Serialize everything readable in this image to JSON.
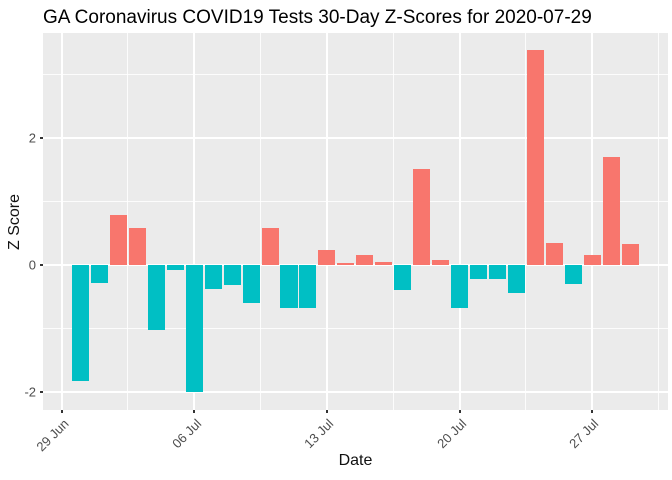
{
  "chart_data": {
    "type": "bar",
    "title": "GA Coronavirus COVID19 Tests 30-Day Z-Scores for 2020-07-29",
    "xlabel": "Date",
    "ylabel": "Z Score",
    "x_dates": [
      "2020-06-30",
      "2020-07-01",
      "2020-07-02",
      "2020-07-03",
      "2020-07-04",
      "2020-07-05",
      "2020-07-06",
      "2020-07-07",
      "2020-07-08",
      "2020-07-09",
      "2020-07-10",
      "2020-07-11",
      "2020-07-12",
      "2020-07-13",
      "2020-07-14",
      "2020-07-15",
      "2020-07-16",
      "2020-07-17",
      "2020-07-18",
      "2020-07-19",
      "2020-07-20",
      "2020-07-21",
      "2020-07-22",
      "2020-07-23",
      "2020-07-24",
      "2020-07-25",
      "2020-07-26",
      "2020-07-27",
      "2020-07-28",
      "2020-07-29"
    ],
    "values": [
      -1.84,
      -0.29,
      0.79,
      0.58,
      -1.03,
      -0.08,
      -2.0,
      -0.38,
      -0.31,
      -0.6,
      0.59,
      -0.68,
      -0.68,
      0.23,
      0.03,
      0.15,
      0.04,
      -0.39,
      1.51,
      0.08,
      -0.68,
      -0.23,
      -0.23,
      -0.45,
      3.39,
      0.35,
      -0.3,
      0.15,
      1.7,
      0.33
    ],
    "positive_color": "#F8766D",
    "negative_color": "#00BFC4",
    "panel_bg": "#EBEBEB",
    "grid_color": "#FFFFFF",
    "axis_text_color": "#4D4D4D",
    "ylim": [
      -2.29,
      3.66
    ],
    "y_major_ticks": [
      -2,
      0,
      2
    ],
    "y_minor_ticks": [
      -1,
      1,
      3
    ],
    "y_tick_labels": [
      "-2",
      "0",
      "2"
    ],
    "xlim_days": [
      -1.98,
      31.0
    ],
    "x_ticks": [
      {
        "label": "29 Jun",
        "day": -1
      },
      {
        "label": "06 Jul",
        "day": 6
      },
      {
        "label": "13 Jul",
        "day": 13
      },
      {
        "label": "20 Jul",
        "day": 20
      },
      {
        "label": "27 Jul",
        "day": 27
      }
    ],
    "bar_width_days": 0.9,
    "legend_position": "none",
    "grid": true
  }
}
